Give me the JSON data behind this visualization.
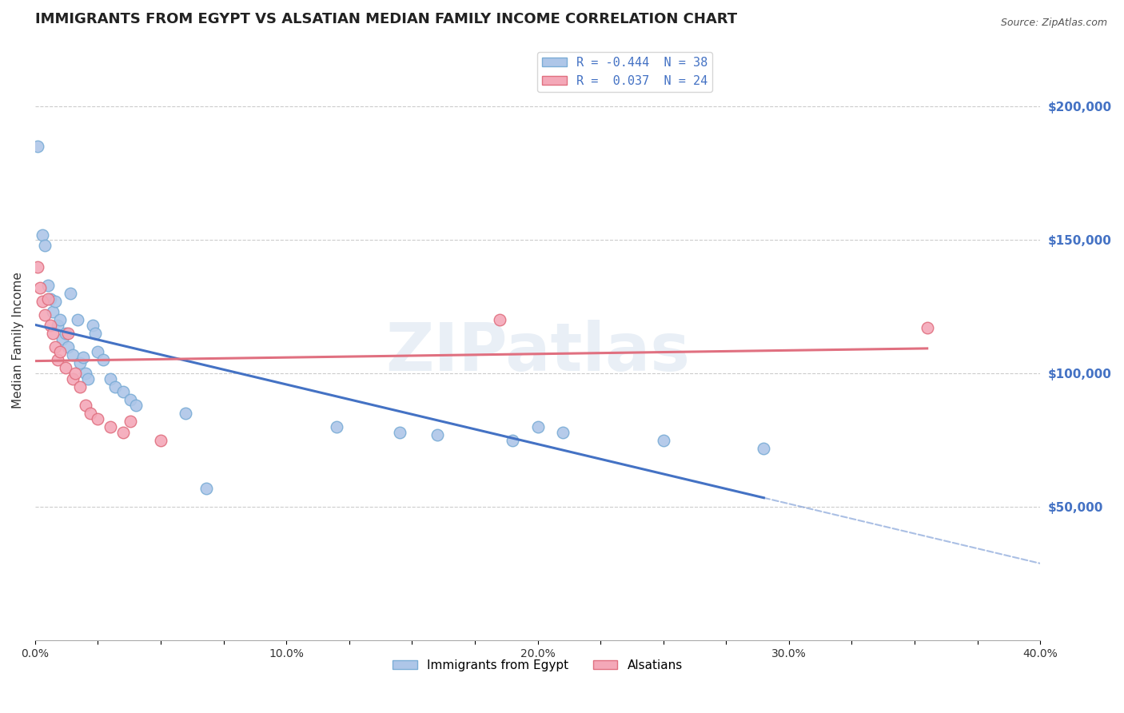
{
  "title": "IMMIGRANTS FROM EGYPT VS ALSATIAN MEDIAN FAMILY INCOME CORRELATION CHART",
  "source": "Source: ZipAtlas.com",
  "ylabel": "Median Family Income",
  "xlim": [
    0.0,
    0.4
  ],
  "ylim": [
    0,
    225000
  ],
  "xtick_labels": [
    "0.0%",
    "",
    "",
    "",
    "10.0%",
    "",
    "",
    "",
    "20.0%",
    "",
    "",
    "",
    "30.0%",
    "",
    "",
    "",
    "40.0%"
  ],
  "xtick_vals": [
    0.0,
    0.025,
    0.05,
    0.075,
    0.1,
    0.125,
    0.15,
    0.175,
    0.2,
    0.225,
    0.25,
    0.275,
    0.3,
    0.325,
    0.35,
    0.375,
    0.4
  ],
  "ytick_labels": [
    "$50,000",
    "$100,000",
    "$150,000",
    "$200,000"
  ],
  "ytick_vals": [
    50000,
    100000,
    150000,
    200000
  ],
  "legend_entries": [
    {
      "label": "R = -0.444  N = 38"
    },
    {
      "label": "R =  0.037  N = 24"
    }
  ],
  "legend_label_bottom": [
    "Immigrants from Egypt",
    "Alsatians"
  ],
  "egypt_scatter": [
    [
      0.001,
      185000
    ],
    [
      0.003,
      152000
    ],
    [
      0.004,
      148000
    ],
    [
      0.005,
      133000
    ],
    [
      0.006,
      128000
    ],
    [
      0.007,
      123000
    ],
    [
      0.008,
      127000
    ],
    [
      0.009,
      118000
    ],
    [
      0.01,
      120000
    ],
    [
      0.011,
      113000
    ],
    [
      0.012,
      115000
    ],
    [
      0.013,
      110000
    ],
    [
      0.014,
      130000
    ],
    [
      0.015,
      107000
    ],
    [
      0.017,
      120000
    ],
    [
      0.018,
      104000
    ],
    [
      0.019,
      106000
    ],
    [
      0.02,
      100000
    ],
    [
      0.021,
      98000
    ],
    [
      0.023,
      118000
    ],
    [
      0.024,
      115000
    ],
    [
      0.025,
      108000
    ],
    [
      0.027,
      105000
    ],
    [
      0.03,
      98000
    ],
    [
      0.032,
      95000
    ],
    [
      0.035,
      93000
    ],
    [
      0.038,
      90000
    ],
    [
      0.04,
      88000
    ],
    [
      0.06,
      85000
    ],
    [
      0.068,
      57000
    ],
    [
      0.12,
      80000
    ],
    [
      0.145,
      78000
    ],
    [
      0.16,
      77000
    ],
    [
      0.19,
      75000
    ],
    [
      0.2,
      80000
    ],
    [
      0.21,
      78000
    ],
    [
      0.25,
      75000
    ],
    [
      0.29,
      72000
    ]
  ],
  "alsatian_scatter": [
    [
      0.001,
      140000
    ],
    [
      0.002,
      132000
    ],
    [
      0.003,
      127000
    ],
    [
      0.004,
      122000
    ],
    [
      0.005,
      128000
    ],
    [
      0.006,
      118000
    ],
    [
      0.007,
      115000
    ],
    [
      0.008,
      110000
    ],
    [
      0.009,
      105000
    ],
    [
      0.01,
      108000
    ],
    [
      0.012,
      102000
    ],
    [
      0.013,
      115000
    ],
    [
      0.015,
      98000
    ],
    [
      0.016,
      100000
    ],
    [
      0.018,
      95000
    ],
    [
      0.02,
      88000
    ],
    [
      0.022,
      85000
    ],
    [
      0.025,
      83000
    ],
    [
      0.03,
      80000
    ],
    [
      0.035,
      78000
    ],
    [
      0.038,
      82000
    ],
    [
      0.05,
      75000
    ],
    [
      0.185,
      120000
    ],
    [
      0.355,
      117000
    ]
  ],
  "egypt_line_color": "#4472c4",
  "alsatian_line_color": "#e07080",
  "egypt_dot_facecolor": "#aec6e8",
  "alsatian_dot_facecolor": "#f4a8b8",
  "egypt_dot_edgecolor": "#7badd6",
  "alsatian_dot_edgecolor": "#e07080",
  "watermark": "ZIPatlas",
  "grid_color": "#cccccc",
  "background_color": "#ffffff",
  "title_fontsize": 13,
  "axis_label_fontsize": 11,
  "tick_fontsize": 10,
  "dot_size": 110,
  "line_width": 2.2
}
